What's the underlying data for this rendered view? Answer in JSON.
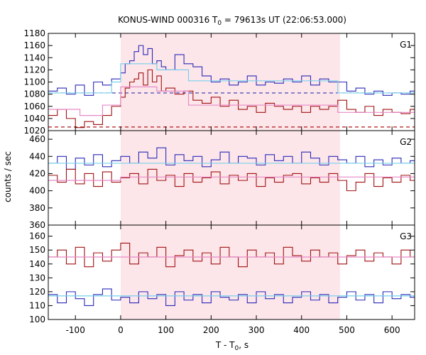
{
  "chart_data": {
    "type": "line",
    "title_main": "KONUS-WIND 000316 T",
    "title_sub": "0",
    "title_rest": " = 79613s UT (22:06:53.000)",
    "xlabel_main": "T - T",
    "xlabel_sub": "0",
    "xlabel_rest": ", s",
    "ylabel": "counts / sec",
    "xlim": [
      -160,
      650
    ],
    "x_ticks": [
      -100,
      0,
      100,
      200,
      300,
      400,
      500,
      600
    ],
    "x_tick_labels": [
      "-100",
      "0",
      "100",
      "200",
      "300",
      "400",
      "500",
      "600"
    ],
    "shaded_interval": [
      0,
      485
    ],
    "colors": {
      "blue": "#2a2ab8",
      "red": "#a01010",
      "light_blue": "#79d0ec",
      "pink": "#e68ac8",
      "shade": "#fde6ea",
      "blue_dash": "#3333aa",
      "red_dash": "#b01818"
    },
    "panels": [
      {
        "label": "G1",
        "ylim": [
          1020,
          1180
        ],
        "y_ticks": [
          1020,
          1040,
          1060,
          1080,
          1100,
          1120,
          1140,
          1160,
          1180
        ],
        "y_tick_labels": [
          "1020",
          "1040",
          "1060",
          "1080",
          "1100",
          "1120",
          "1140",
          "1160",
          "1180"
        ],
        "dashed_levels": [
          {
            "color": "blue_dash",
            "y": 1082
          },
          {
            "color": "red_dash",
            "y": 1026
          }
        ],
        "series": [
          {
            "color": "blue",
            "x": [
              -160,
              -140,
              -120,
              -100,
              -80,
              -60,
              -40,
              -20,
              0,
              10,
              20,
              30,
              40,
              50,
              60,
              70,
              80,
              90,
              100,
              120,
              140,
              160,
              180,
              200,
              220,
              240,
              260,
              280,
              300,
              320,
              340,
              360,
              380,
              400,
              420,
              440,
              460,
              480,
              500,
              520,
              540,
              560,
              580,
              600,
              620,
              640
            ],
            "y": [
              1085,
              1090,
              1080,
              1095,
              1078,
              1100,
              1095,
              1105,
              1115,
              1130,
              1135,
              1150,
              1160,
              1145,
              1155,
              1130,
              1135,
              1125,
              1120,
              1145,
              1130,
              1125,
              1110,
              1100,
              1105,
              1095,
              1100,
              1110,
              1095,
              1100,
              1098,
              1105,
              1100,
              1110,
              1095,
              1105,
              1100,
              1100,
              1085,
              1090,
              1080,
              1085,
              1078,
              1082,
              1080,
              1085
            ]
          },
          {
            "color": "red",
            "x": [
              -160,
              -140,
              -120,
              -100,
              -80,
              -60,
              -40,
              -20,
              0,
              10,
              20,
              30,
              40,
              50,
              60,
              70,
              80,
              90,
              100,
              120,
              140,
              160,
              180,
              200,
              220,
              240,
              260,
              280,
              300,
              320,
              340,
              360,
              380,
              400,
              420,
              440,
              460,
              480,
              500,
              520,
              540,
              560,
              580,
              600,
              620,
              640
            ],
            "y": [
              1045,
              1055,
              1040,
              1025,
              1035,
              1030,
              1045,
              1060,
              1075,
              1090,
              1100,
              1105,
              1115,
              1095,
              1120,
              1100,
              1110,
              1085,
              1090,
              1080,
              1085,
              1070,
              1065,
              1075,
              1060,
              1070,
              1055,
              1060,
              1050,
              1065,
              1060,
              1055,
              1060,
              1050,
              1060,
              1055,
              1060,
              1070,
              1055,
              1050,
              1060,
              1045,
              1055,
              1050,
              1048,
              1055
            ]
          },
          {
            "color": "light_blue",
            "x": [
              -160,
              -20,
              -20,
              0,
              0,
              80,
              80,
              150,
              150,
              480,
              480,
              650
            ],
            "y": [
              1082,
              1082,
              1100,
              1100,
              1130,
              1130,
              1120,
              1120,
              1102,
              1102,
              1082,
              1082
            ]
          },
          {
            "color": "pink",
            "x": [
              -160,
              -90,
              -90,
              -40,
              -40,
              0,
              0,
              80,
              80,
              150,
              150,
              480,
              480,
              650
            ],
            "y": [
              1055,
              1055,
              1045,
              1045,
              1062,
              1062,
              1092,
              1092,
              1085,
              1085,
              1062,
              1062,
              1050,
              1050
            ]
          }
        ]
      },
      {
        "label": "G2",
        "ylim": [
          360,
          470
        ],
        "y_ticks": [
          360,
          380,
          400,
          420,
          440,
          460
        ],
        "y_tick_labels": [
          "360",
          "380",
          "400",
          "420",
          "440",
          "460"
        ],
        "dashed_levels": [],
        "series": [
          {
            "color": "blue",
            "x": [
              -160,
              -140,
              -120,
              -100,
              -80,
              -60,
              -40,
              -20,
              0,
              20,
              40,
              60,
              80,
              100,
              120,
              140,
              160,
              180,
              200,
              220,
              240,
              260,
              280,
              300,
              320,
              340,
              360,
              380,
              400,
              420,
              440,
              460,
              480,
              500,
              520,
              540,
              560,
              580,
              600,
              620,
              640
            ],
            "y": [
              432,
              440,
              425,
              438,
              430,
              442,
              428,
              435,
              440,
              432,
              445,
              438,
              450,
              430,
              442,
              435,
              440,
              428,
              436,
              445,
              432,
              440,
              438,
              430,
              442,
              435,
              440,
              432,
              445,
              438,
              430,
              440,
              436,
              432,
              440,
              428,
              436,
              430,
              438,
              432,
              435
            ]
          },
          {
            "color": "red",
            "x": [
              -160,
              -140,
              -120,
              -100,
              -80,
              -60,
              -40,
              -20,
              0,
              20,
              40,
              60,
              80,
              100,
              120,
              140,
              160,
              180,
              200,
              220,
              240,
              260,
              280,
              300,
              320,
              340,
              360,
              380,
              400,
              420,
              440,
              460,
              480,
              500,
              520,
              540,
              560,
              580,
              600,
              620,
              640
            ],
            "y": [
              418,
              410,
              425,
              408,
              420,
              405,
              422,
              410,
              415,
              420,
              408,
              425,
              412,
              418,
              405,
              420,
              410,
              415,
              422,
              408,
              418,
              412,
              420,
              405,
              415,
              410,
              418,
              420,
              408,
              415,
              410,
              420,
              412,
              400,
              410,
              420,
              405,
              415,
              410,
              418,
              412
            ]
          },
          {
            "color": "light_blue",
            "x": [
              -160,
              650
            ],
            "y": [
              432,
              432
            ]
          },
          {
            "color": "pink",
            "x": [
              -160,
              0,
              0,
              650
            ],
            "y": [
              412,
              412,
              416,
              416
            ]
          }
        ]
      },
      {
        "label": "G3",
        "ylim": [
          100,
          168
        ],
        "y_ticks": [
          100,
          110,
          120,
          130,
          140,
          150,
          160
        ],
        "y_tick_labels": [
          "100",
          "110",
          "120",
          "130",
          "140",
          "150",
          "160"
        ],
        "dashed_levels": [],
        "series": [
          {
            "color": "red",
            "x": [
              -160,
              -140,
              -120,
              -100,
              -80,
              -60,
              -40,
              -20,
              0,
              20,
              40,
              60,
              80,
              100,
              120,
              140,
              160,
              180,
              200,
              220,
              240,
              260,
              280,
              300,
              320,
              340,
              360,
              380,
              400,
              420,
              440,
              460,
              480,
              500,
              520,
              540,
              560,
              580,
              600,
              620,
              640
            ],
            "y": [
              145,
              150,
              140,
              152,
              138,
              148,
              142,
              150,
              155,
              140,
              148,
              145,
              152,
              138,
              146,
              150,
              142,
              148,
              140,
              152,
              145,
              138,
              150,
              145,
              148,
              140,
              152,
              146,
              142,
              150,
              145,
              148,
              140,
              146,
              150,
              142,
              148,
              145,
              140,
              150,
              145
            ]
          },
          {
            "color": "blue",
            "x": [
              -160,
              -140,
              -120,
              -100,
              -80,
              -60,
              -40,
              -20,
              0,
              20,
              40,
              60,
              80,
              100,
              120,
              140,
              160,
              180,
              200,
              220,
              240,
              260,
              280,
              300,
              320,
              340,
              360,
              380,
              400,
              420,
              440,
              460,
              480,
              500,
              520,
              540,
              560,
              580,
              600,
              620,
              640
            ],
            "y": [
              118,
              112,
              120,
              115,
              110,
              118,
              122,
              114,
              116,
              112,
              120,
              115,
              118,
              110,
              120,
              114,
              118,
              112,
              120,
              116,
              114,
              118,
              112,
              120,
              115,
              118,
              112,
              116,
              120,
              114,
              118,
              112,
              116,
              120,
              114,
              118,
              112,
              120,
              115,
              118,
              116
            ]
          },
          {
            "color": "pink",
            "x": [
              -160,
              650
            ],
            "y": [
              145,
              145
            ]
          },
          {
            "color": "light_blue",
            "x": [
              -160,
              650
            ],
            "y": [
              117,
              117
            ]
          }
        ]
      }
    ]
  }
}
